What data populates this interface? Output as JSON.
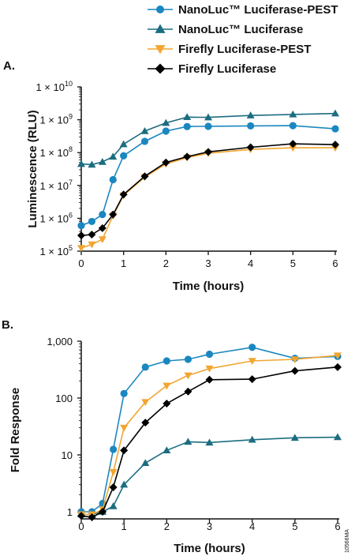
{
  "colors": {
    "nanoluc_pest": "#1b87c0",
    "nanoluc": "#1c6d80",
    "firefly_pest": "#f2a531",
    "firefly": "#000000"
  },
  "legend": [
    {
      "name": "NanoLuc™ Luciferase-PEST",
      "marker": "circle",
      "color": "#1b87c0"
    },
    {
      "name": "NanoLuc™ Luciferase",
      "marker": "triangle",
      "color": "#1c6d80"
    },
    {
      "name": "Firefly Luciferase-PEST",
      "marker": "triangle-down",
      "color": "#f2a531"
    },
    {
      "name": "Firefly Luciferase",
      "marker": "diamond",
      "color": "#000000"
    }
  ],
  "figure_code": "10566MA",
  "chart_data": [
    {
      "type": "line",
      "panel_label": "A.",
      "xlabel": "Time (hours)",
      "ylabel": "Luminescence (RLU)",
      "yscale": "log",
      "xlim": [
        0,
        6
      ],
      "ylim": [
        100000,
        10000000000
      ],
      "x_ticks": [
        0,
        1,
        2,
        3,
        4,
        5,
        6
      ],
      "y_ticks": [
        {
          "value": 100000,
          "mant": "1 × 10",
          "exp": "5"
        },
        {
          "value": 1000000,
          "mant": "1 × 10",
          "exp": "6"
        },
        {
          "value": 10000000,
          "mant": "1 × 10",
          "exp": "7"
        },
        {
          "value": 100000000,
          "mant": "1 × 10",
          "exp": "8"
        },
        {
          "value": 1000000000,
          "mant": "1 × 10",
          "exp": "9"
        },
        {
          "value": 10000000000,
          "mant": "1 × 10",
          "exp": "10"
        }
      ],
      "series": [
        {
          "name": "NanoLuc™ Luciferase-PEST",
          "marker": "circle",
          "color": "#1b87c0",
          "x": [
            0,
            0.25,
            0.5,
            0.75,
            1,
            1.5,
            2,
            2.5,
            3,
            4,
            5,
            6
          ],
          "y": [
            600000,
            800000,
            1300000,
            15000000,
            80000000,
            220000000,
            450000000,
            620000000,
            630000000,
            650000000,
            660000000,
            530000000
          ]
        },
        {
          "name": "NanoLuc™ Luciferase",
          "marker": "triangle",
          "color": "#1c6d80",
          "x": [
            0,
            0.25,
            0.5,
            0.75,
            1,
            1.5,
            2,
            2.5,
            3,
            4,
            5,
            6
          ],
          "y": [
            45000000,
            43000000,
            52000000,
            75000000,
            180000000,
            450000000,
            800000000,
            1200000000,
            1180000000,
            1350000000,
            1450000000,
            1550000000
          ]
        },
        {
          "name": "Firefly Luciferase-PEST",
          "marker": "triangle-down",
          "color": "#f2a531",
          "x": [
            0,
            0.25,
            0.5,
            0.75,
            1,
            1.5,
            2,
            2.5,
            3,
            4,
            5,
            6
          ],
          "y": [
            125000,
            160000,
            230000,
            1200000,
            5000000,
            18000000,
            45000000,
            70000000,
            95000000,
            125000000,
            140000000,
            140000000
          ]
        },
        {
          "name": "Firefly Luciferase",
          "marker": "diamond",
          "color": "#000000",
          "x": [
            0,
            0.25,
            0.5,
            0.75,
            1,
            1.5,
            2,
            2.5,
            3,
            4,
            5,
            6
          ],
          "y": [
            300000,
            320000,
            500000,
            1300000,
            5300000,
            19000000,
            50000000,
            75000000,
            105000000,
            145000000,
            185000000,
            175000000
          ]
        }
      ]
    },
    {
      "type": "line",
      "panel_label": "B.",
      "xlabel": "Time (hours)",
      "ylabel": "Fold Response",
      "yscale": "log",
      "xlim": [
        0,
        6
      ],
      "ylim": [
        0.8,
        1000
      ],
      "x_ticks": [
        0,
        1,
        2,
        3,
        4,
        5,
        6
      ],
      "y_ticks": [
        {
          "value": 1,
          "label": "1"
        },
        {
          "value": 10,
          "label": "10"
        },
        {
          "value": 100,
          "label": "100"
        },
        {
          "value": 1000,
          "label": "1,000"
        }
      ],
      "series": [
        {
          "name": "NanoLuc™ Luciferase-PEST",
          "marker": "circle",
          "color": "#1b87c0",
          "x": [
            0,
            0.25,
            0.5,
            0.75,
            1,
            1.5,
            2,
            2.5,
            3,
            4,
            5,
            6
          ],
          "y": [
            1,
            1,
            1.4,
            12.5,
            120,
            350,
            450,
            480,
            590,
            780,
            500,
            540
          ]
        },
        {
          "name": "NanoLuc™ Luciferase",
          "marker": "triangle",
          "color": "#1c6d80",
          "x": [
            0,
            0.25,
            0.5,
            0.75,
            1,
            1.5,
            2,
            2.5,
            3,
            4,
            5,
            6
          ],
          "y": [
            0.9,
            0.9,
            1,
            1.25,
            3,
            7.2,
            12,
            17,
            16.5,
            18.5,
            20,
            20.5
          ]
        },
        {
          "name": "Firefly Luciferase-PEST",
          "marker": "triangle-down",
          "color": "#f2a531",
          "x": [
            0,
            0.25,
            0.5,
            0.75,
            1,
            1.5,
            2,
            2.5,
            3,
            4,
            5,
            6
          ],
          "y": [
            0.9,
            0.9,
            1.1,
            5,
            30,
            85,
            165,
            250,
            330,
            450,
            480,
            560
          ]
        },
        {
          "name": "Firefly Luciferase",
          "marker": "diamond",
          "color": "#000000",
          "x": [
            0,
            0.25,
            0.5,
            0.75,
            1,
            1.5,
            2,
            2.5,
            3,
            4,
            5,
            6
          ],
          "y": [
            0.85,
            0.8,
            1,
            2.7,
            12,
            37,
            80,
            130,
            210,
            215,
            300,
            350
          ]
        }
      ]
    }
  ]
}
